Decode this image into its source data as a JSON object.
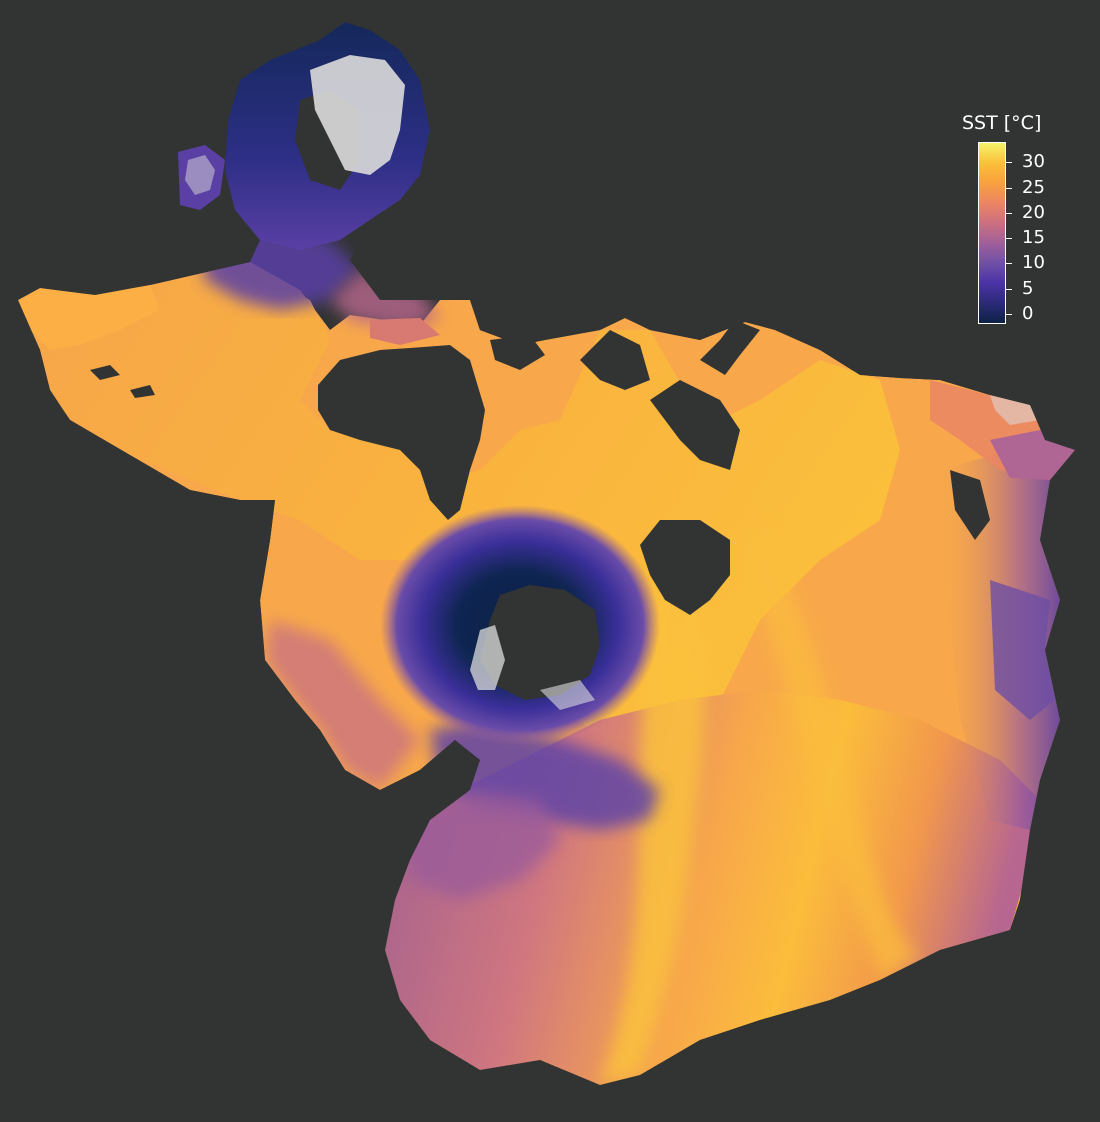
{
  "background_color": "#323434",
  "land_color": "#323434",
  "ice_color": "#e0e0e0",
  "colorbar": {
    "title": "SST [°C]",
    "min": -2,
    "max": 34,
    "ticks": [
      {
        "value": 0,
        "label": "0"
      },
      {
        "value": 5,
        "label": "5"
      },
      {
        "value": 10,
        "label": "10"
      },
      {
        "value": 15,
        "label": "15"
      },
      {
        "value": 20,
        "label": "20"
      },
      {
        "value": 25,
        "label": "25"
      },
      {
        "value": 30,
        "label": "30"
      }
    ],
    "colormap": [
      "#0b2245",
      "#2c2a78",
      "#4a33a6",
      "#7050a6",
      "#a0609a",
      "#cc6f80",
      "#ec8562",
      "#f8a13f",
      "#fbc03a",
      "#f5f36b"
    ]
  }
}
